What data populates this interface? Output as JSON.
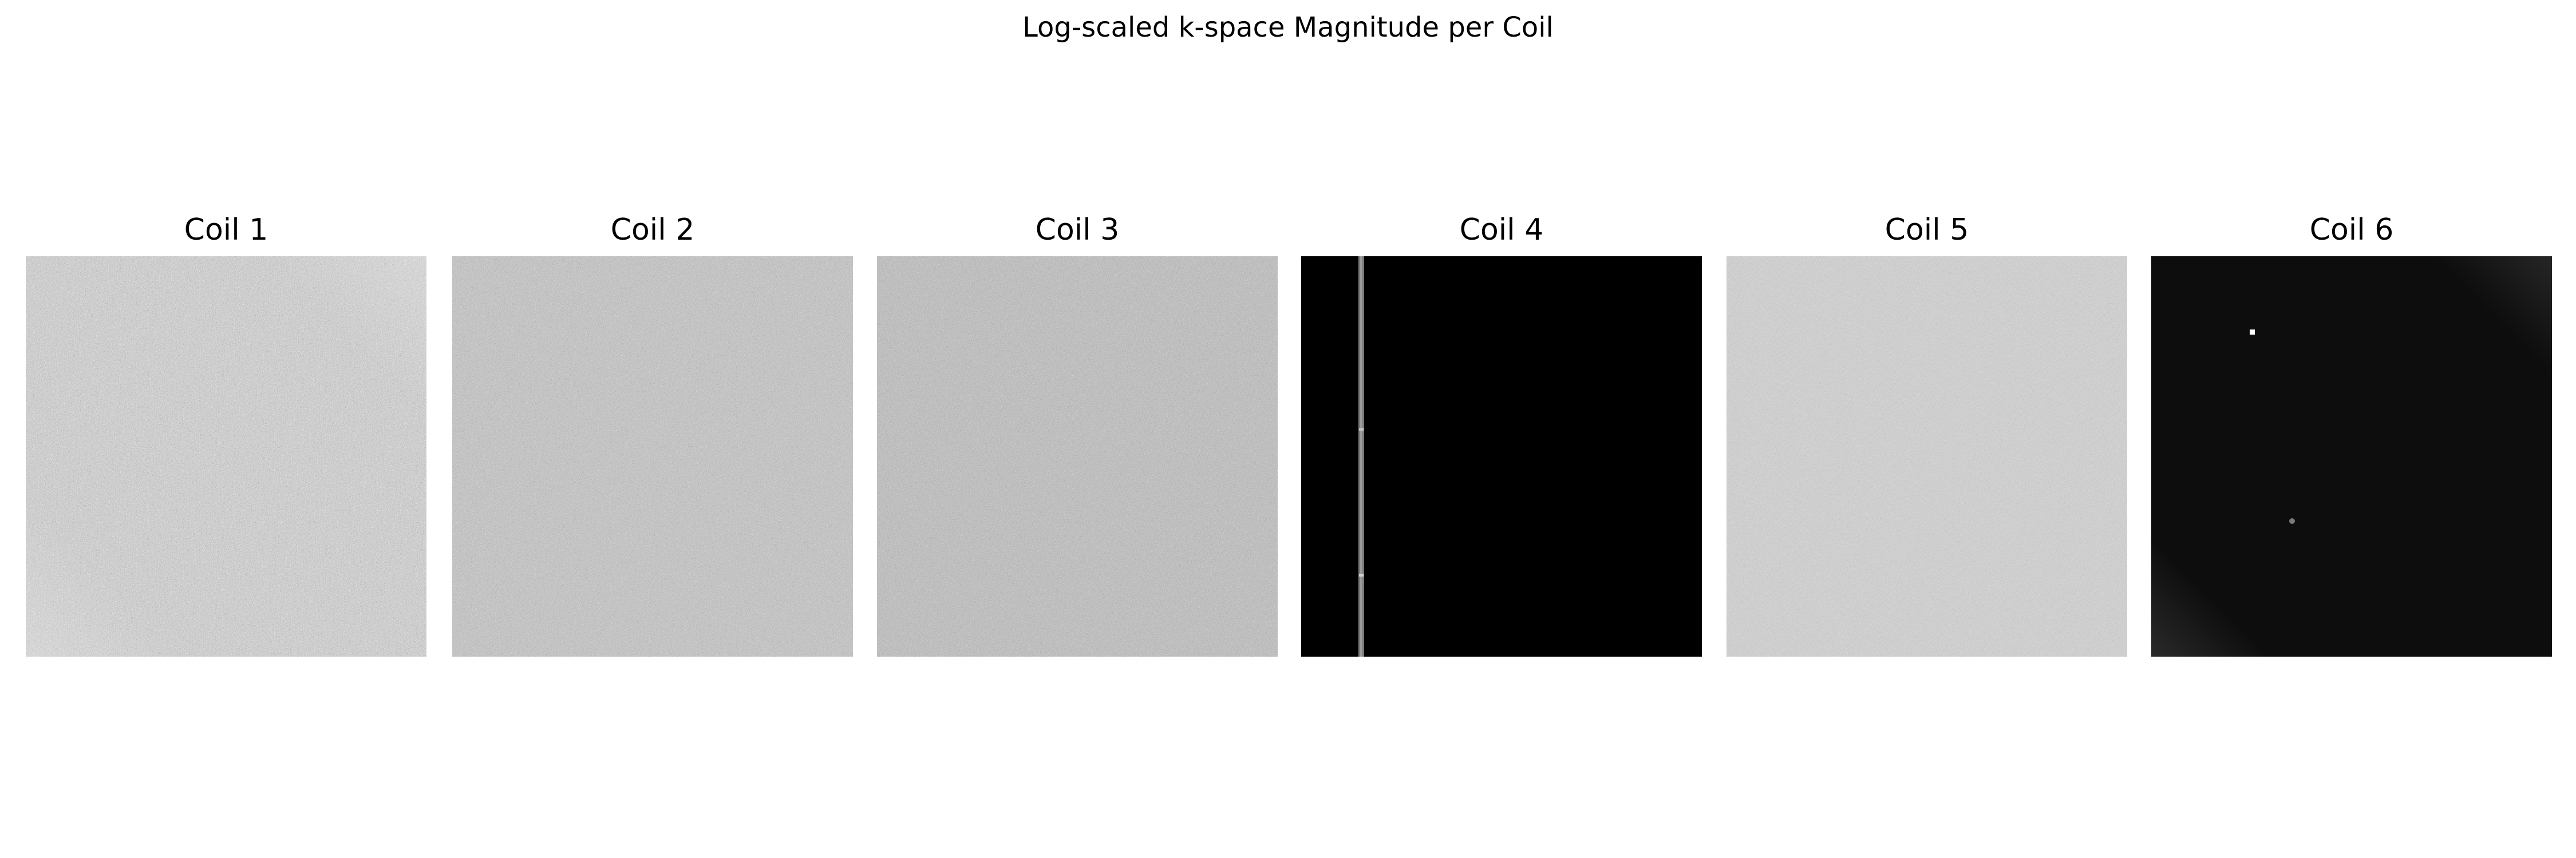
{
  "figure": {
    "title": "Log-scaled k-space Magnitude per Coil"
  },
  "panels": [
    {
      "title": "Coil 1",
      "appearance": "mid-gray speckled noise, darker center band"
    },
    {
      "title": "Coil 2",
      "appearance": "uniform mid-gray speckled noise"
    },
    {
      "title": "Coil 3",
      "appearance": "mid-gray speckled noise, slightly darker"
    },
    {
      "title": "Coil 4",
      "appearance": "black field with a single vertical light-gray line near left edge"
    },
    {
      "title": "Coil 5",
      "appearance": "lighter gray fine speckled noise"
    },
    {
      "title": "Coil 6",
      "appearance": "near-black field with a small white dot and a faint gray dot"
    }
  ]
}
